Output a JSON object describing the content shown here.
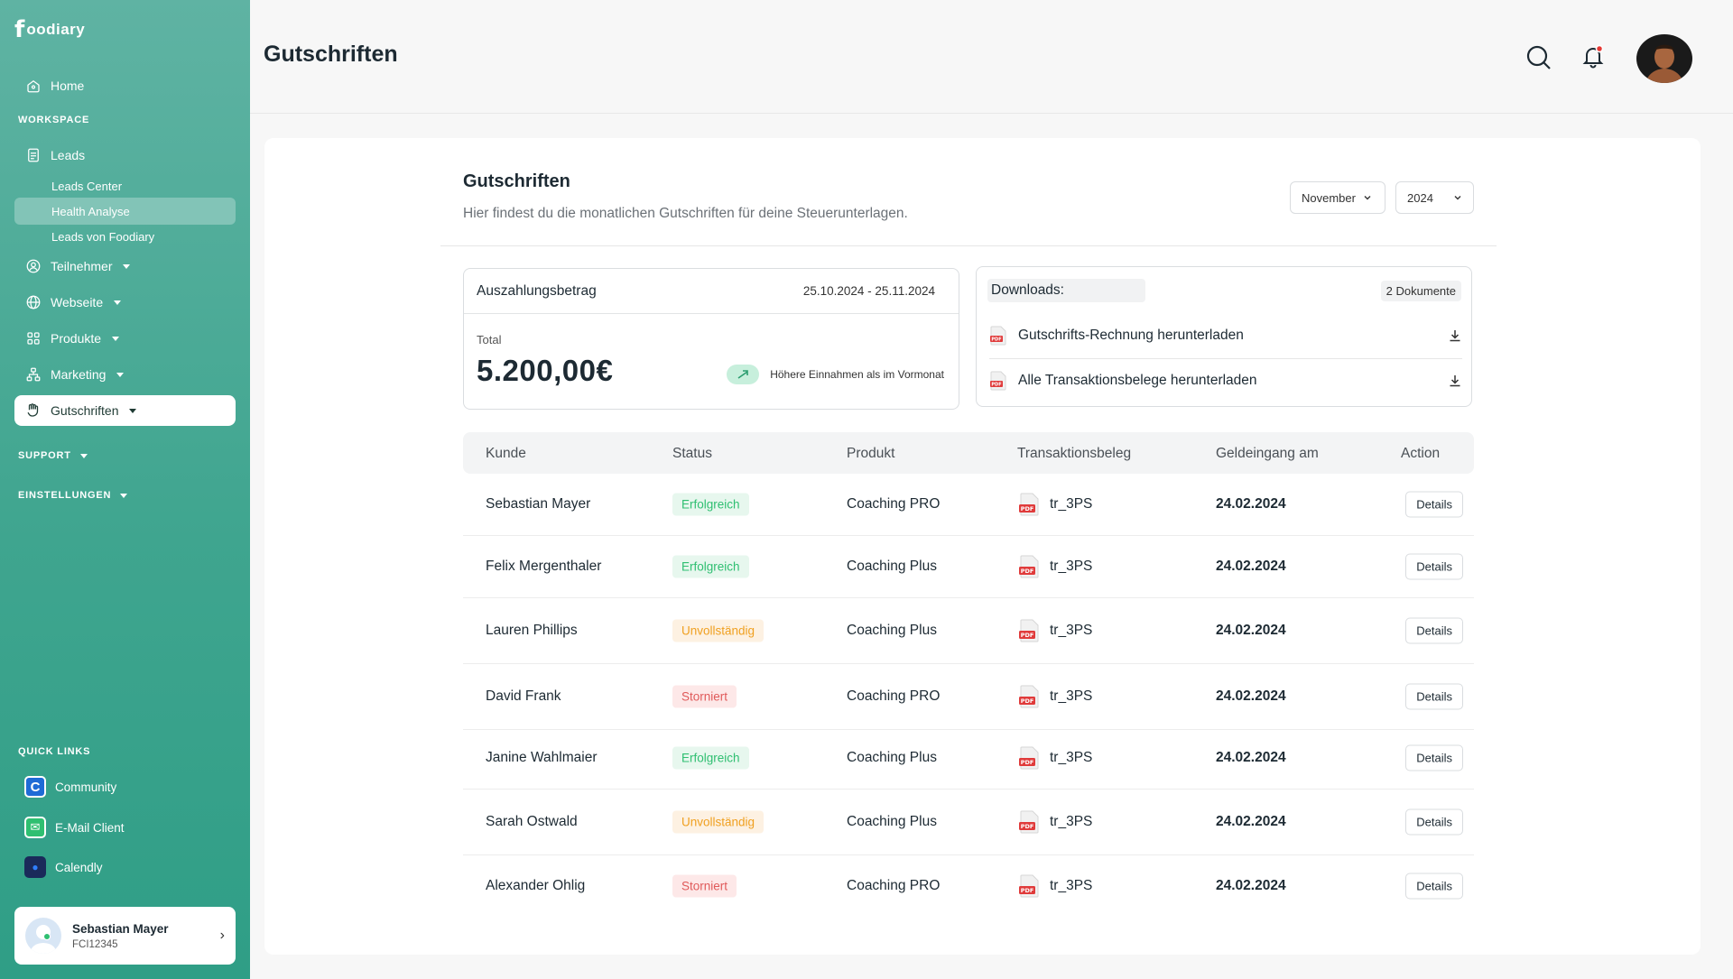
{
  "app": {
    "logo_mark": "f",
    "logo_word": "oodiary"
  },
  "sidebar": {
    "home": "Home",
    "workspace_label": "WORKSPACE",
    "leads": "Leads",
    "leads_sub": [
      "Leads Center",
      "Health Analyse",
      "Leads von Foodiary"
    ],
    "teilnehmer": "Teilnehmer",
    "webseite": "Webseite",
    "produkte": "Produkte",
    "marketing": "Marketing",
    "gutschriften": "Gutschriften",
    "support_label": "SUPPORT",
    "einstellungen_label": "EINSTELLUNGEN",
    "quick_links_label": "QUICK LINKS",
    "quick_links": [
      {
        "label": "Community",
        "glyph": "C",
        "color": "#1f6bd6"
      },
      {
        "label": "E-Mail Client",
        "glyph": "✉",
        "color": "#2fbf71"
      },
      {
        "label": "Calendly",
        "glyph": "●",
        "color": "#1a2a5a"
      }
    ],
    "user": {
      "name": "Sebastian Mayer",
      "id": "FCI12345"
    }
  },
  "header": {
    "title": "Gutschriften"
  },
  "content": {
    "title": "Gutschriften",
    "subtitle": "Hier findest du die monatlichen Gutschriften für deine Steuerunterlagen.",
    "month": "November",
    "year": "2024",
    "payout": {
      "title": "Auszahlungsbetrag",
      "range": "25.10.2024 - 25.11.2024",
      "total_label": "Total",
      "amount": "5.200,00€",
      "trend_text": "Höhere Einnahmen als im Vormonat"
    },
    "downloads": {
      "title": "Downloads:",
      "count": "2 Dokumente",
      "items": [
        "Gutschrifts-Rechnung herunterladen",
        "Alle Transaktionsbelege herunterladen"
      ]
    }
  },
  "table": {
    "headers": [
      "Kunde",
      "Status",
      "Produkt",
      "Transaktionsbeleg",
      "Geldeingang am",
      "Action"
    ],
    "status_colors": {
      "Erfolgreich": {
        "fg": "#2fbf71",
        "bg": "#e7f7ee"
      },
      "Unvollständig": {
        "fg": "#f0a020",
        "bg": "#fdf1e2"
      },
      "Storniert": {
        "fg": "#e05a5a",
        "bg": "#fde8e8"
      }
    },
    "rows": [
      {
        "kunde": "Sebastian Mayer",
        "status": "Erfolgreich",
        "produkt": "Coaching PRO",
        "beleg": "tr_3PS",
        "datum": "24.02.2024",
        "action": "Details"
      },
      {
        "kunde": "Felix Mergenthaler",
        "status": "Erfolgreich",
        "produkt": "Coaching Plus",
        "beleg": "tr_3PS",
        "datum": "24.02.2024",
        "action": "Details"
      },
      {
        "kunde": "Lauren Phillips",
        "status": "Unvollständig",
        "produkt": "Coaching Plus",
        "beleg": "tr_3PS",
        "datum": "24.02.2024",
        "action": "Details"
      },
      {
        "kunde": "David Frank",
        "status": "Storniert",
        "produkt": "Coaching PRO",
        "beleg": "tr_3PS",
        "datum": "24.02.2024",
        "action": "Details"
      },
      {
        "kunde": "Janine Wahlmaier",
        "status": "Erfolgreich",
        "produkt": "Coaching Plus",
        "beleg": "tr_3PS",
        "datum": "24.02.2024",
        "action": "Details"
      },
      {
        "kunde": "Sarah Ostwald",
        "status": "Unvollständig",
        "produkt": "Coaching Plus",
        "beleg": "tr_3PS",
        "datum": "24.02.2024",
        "action": "Details"
      },
      {
        "kunde": "Alexander Ohlig",
        "status": "Storniert",
        "produkt": "Coaching PRO",
        "beleg": "tr_3PS",
        "datum": "24.02.2024",
        "action": "Details"
      }
    ]
  }
}
